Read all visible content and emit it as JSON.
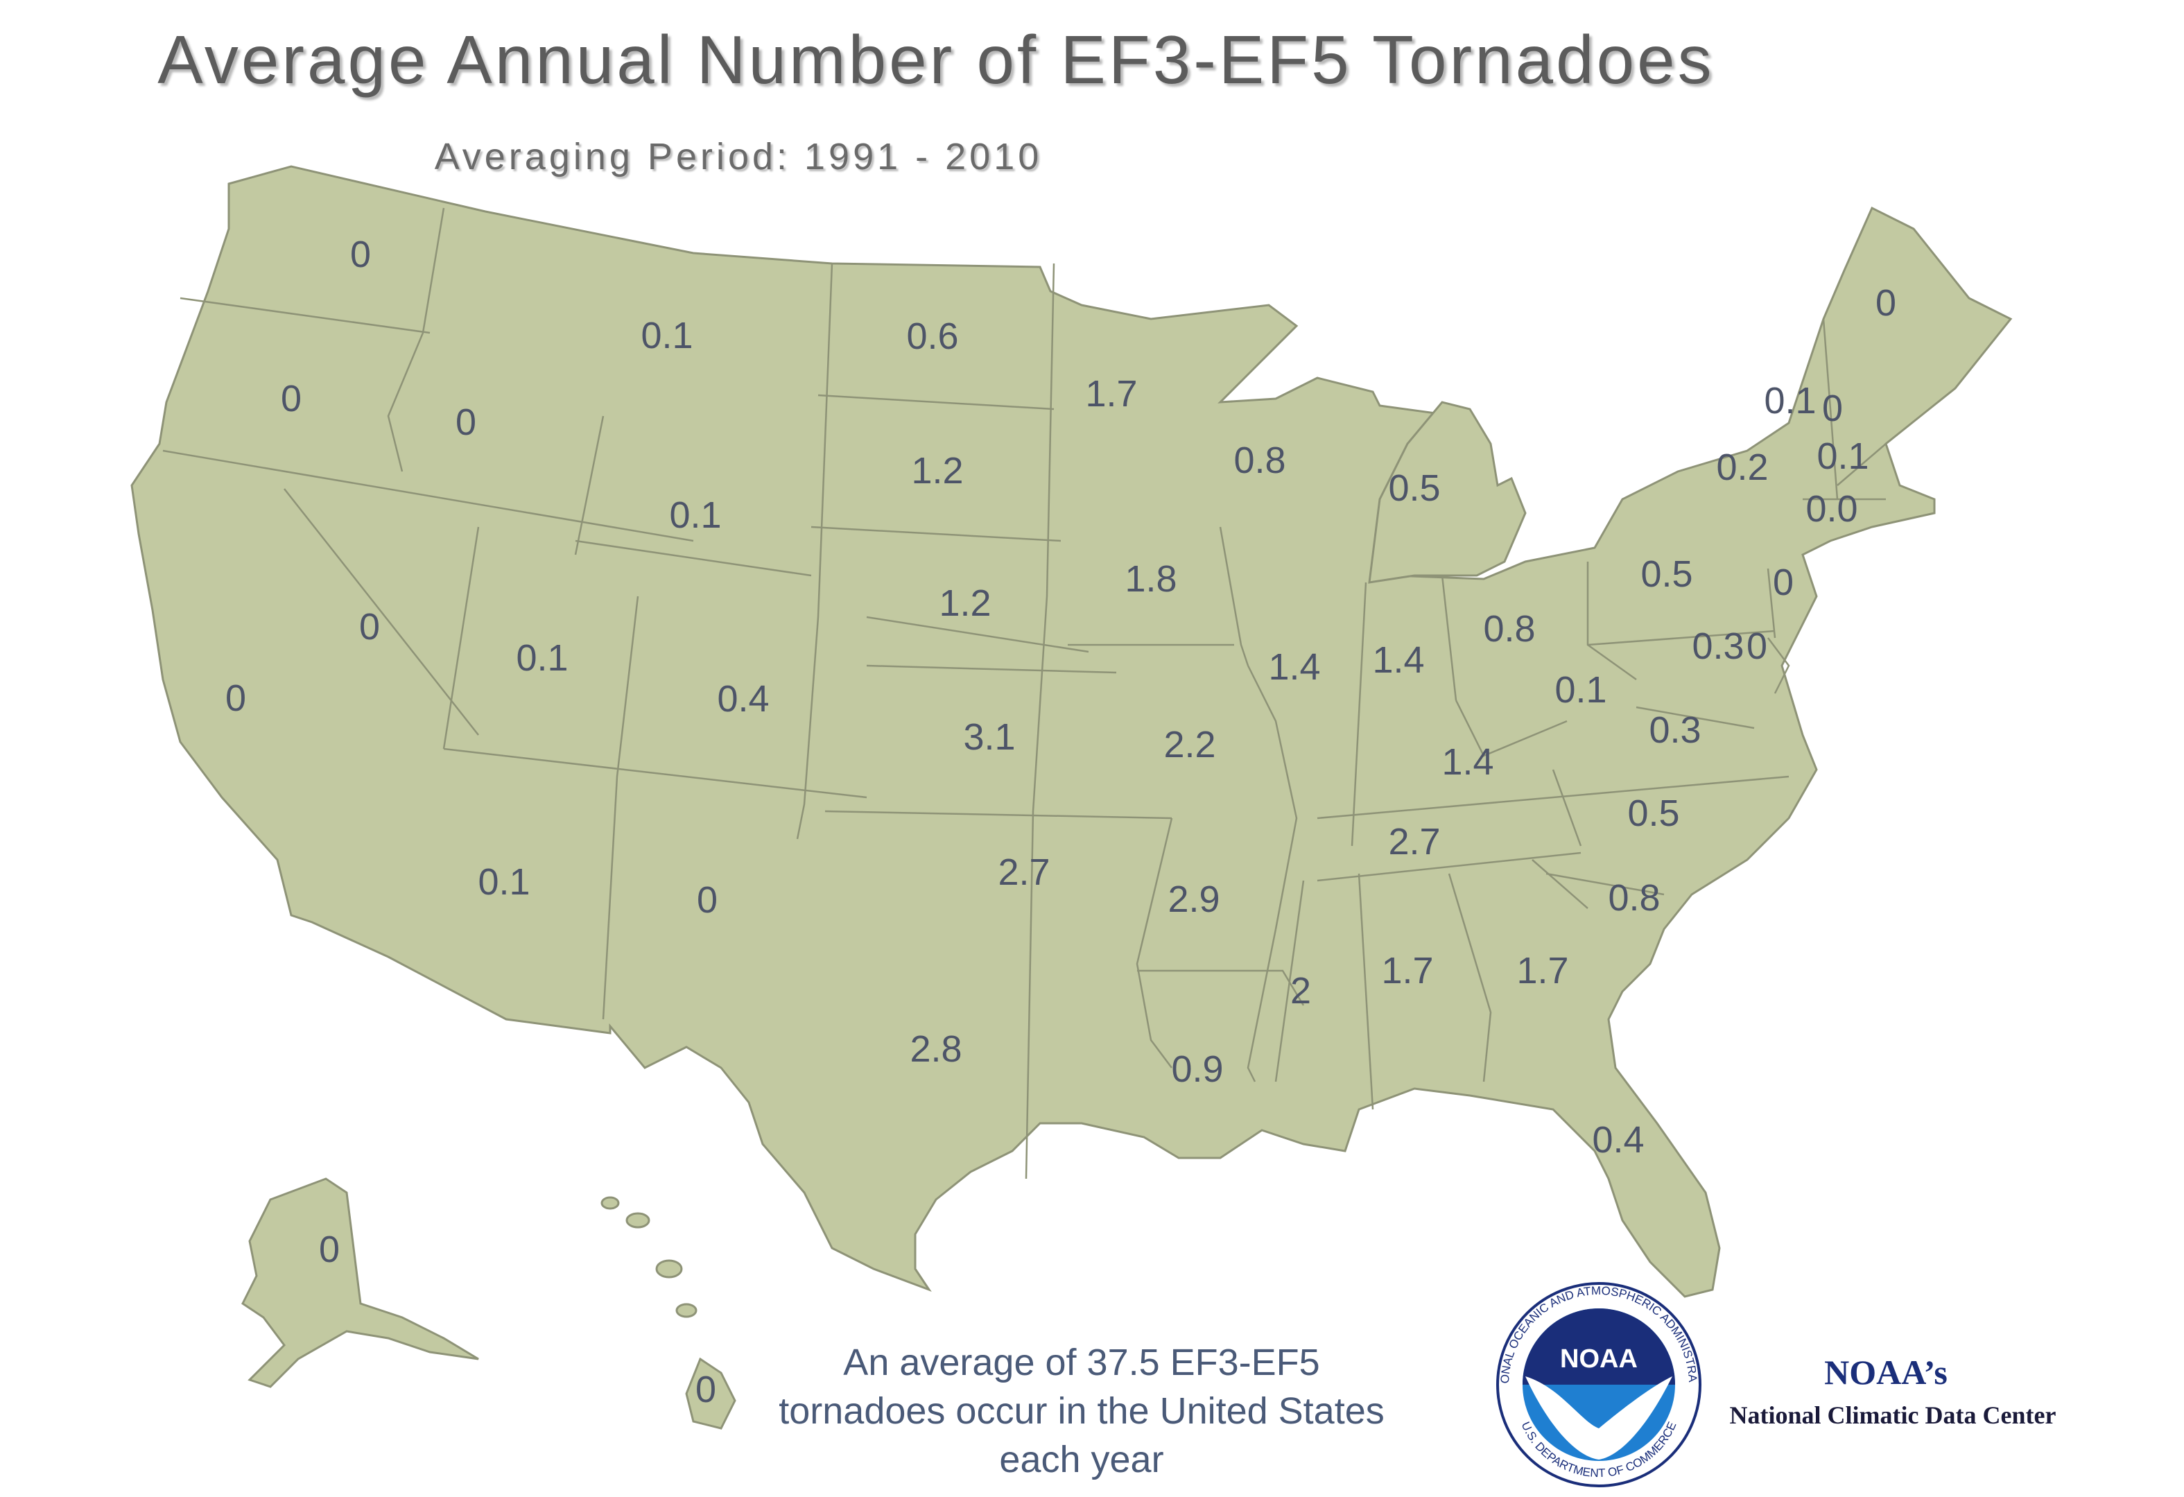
{
  "title": "Average Annual Number of EF3-EF5 Tornadoes",
  "subtitle": "Averaging Period:  1991 - 2010",
  "note": {
    "line1": "An average of  37.5  EF3-EF5",
    "line2": "tornadoes occur in the United States",
    "line3": "each year"
  },
  "logo": {
    "center_text": "NOAA",
    "ring_text_top": "NATIONAL OCEANIC AND ATMOSPHERIC ADMINISTRATION",
    "ring_text_bottom": "U.S. DEPARTMENT OF COMMERCE"
  },
  "org": {
    "title": "NOAA’s",
    "name": "National Climatic Data Center"
  },
  "colors": {
    "land": "#c2c9a1",
    "border": "#8e9377",
    "label": "#4d5468",
    "title": "#5c5c5c",
    "noaa_blue": "#1a2e7a"
  },
  "states": {
    "WA": "0",
    "OR": "0",
    "CA": "0",
    "NV": "0",
    "ID": "0",
    "MT": "0.1",
    "WY": "0.1",
    "UT": "0.1",
    "AZ": "0.1",
    "CO": "0.4",
    "NM": "0",
    "ND": "0.6",
    "SD": "1.2",
    "NE": "1.2",
    "KS": "3.1",
    "OK": "2.7",
    "TX": "2.8",
    "MN": "1.7",
    "IA": "1.8",
    "MO": "2.2",
    "AR": "2.9",
    "LA": "0.9",
    "WI": "0.8",
    "IL": "1.4",
    "MI": "0.5",
    "IN": "1.4",
    "OH": "0.8",
    "KY": "1.4",
    "TN": "2.7",
    "MS": "2",
    "AL": "1.7",
    "GA": "1.7",
    "FL": "0.4",
    "SC": "0.8",
    "NC": "0.5",
    "VA": "0.3",
    "WV": "0.1",
    "PA": "0.5",
    "NY": "0.2",
    "VT": "0.1",
    "NH": "0",
    "ME": "0",
    "MA": "0.1",
    "CT": "0.0",
    "RI": "0",
    "NJ": "0",
    "MD": "0.3",
    "DE": "0",
    "AK": "0",
    "HI": "0"
  }
}
